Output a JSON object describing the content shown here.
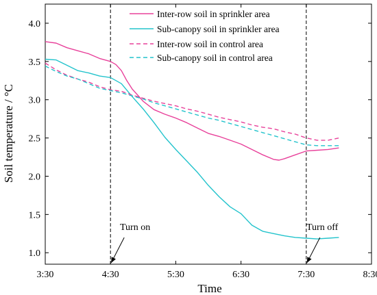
{
  "chart_data": {
    "type": "line",
    "xlabel": "Time",
    "ylabel": "Soil temperature / °C",
    "x_ticks": [
      "3:30",
      "4:30",
      "5:30",
      "6:30",
      "7:30",
      "8:30"
    ],
    "y_ticks": [
      "1.0",
      "1.5",
      "2.0",
      "2.5",
      "3.0",
      "3.5",
      "4.0"
    ],
    "xlim_minutes": [
      0,
      300
    ],
    "ylim": [
      0.85,
      4.25
    ],
    "grid": false,
    "legend_position": "top-right",
    "vlines": [
      {
        "x": "4:30",
        "label": "Turn on"
      },
      {
        "x": "7:30",
        "label": "Turn off"
      }
    ],
    "series": [
      {
        "name": "Inter-row soil in sprinkler area",
        "color": "#e8409a",
        "dash": "solid",
        "x": [
          "3:30",
          "3:40",
          "3:50",
          "4:00",
          "4:10",
          "4:20",
          "4:30",
          "4:35",
          "4:40",
          "4:45",
          "4:50",
          "4:55",
          "5:00",
          "5:10",
          "5:20",
          "5:30",
          "5:40",
          "5:50",
          "6:00",
          "6:10",
          "6:20",
          "6:30",
          "6:40",
          "6:50",
          "7:00",
          "7:05",
          "7:10",
          "7:20",
          "7:30",
          "7:40",
          "7:50",
          "8:00"
        ],
        "values": [
          3.76,
          3.74,
          3.68,
          3.64,
          3.6,
          3.54,
          3.5,
          3.46,
          3.38,
          3.25,
          3.14,
          3.06,
          2.98,
          2.87,
          2.81,
          2.76,
          2.7,
          2.63,
          2.56,
          2.52,
          2.47,
          2.42,
          2.35,
          2.28,
          2.22,
          2.21,
          2.23,
          2.28,
          2.33,
          2.34,
          2.35,
          2.37
        ]
      },
      {
        "name": "Sub-canopy soil in sprinkler area",
        "color": "#22c3cc",
        "dash": "solid",
        "x": [
          "3:30",
          "3:40",
          "3:50",
          "4:00",
          "4:10",
          "4:20",
          "4:30",
          "4:40",
          "4:50",
          "5:00",
          "5:10",
          "5:20",
          "5:30",
          "5:40",
          "5:50",
          "6:00",
          "6:10",
          "6:20",
          "6:30",
          "6:40",
          "6:50",
          "7:00",
          "7:10",
          "7:20",
          "7:30",
          "7:40",
          "7:50",
          "8:00"
        ],
        "values": [
          3.53,
          3.52,
          3.45,
          3.38,
          3.35,
          3.31,
          3.29,
          3.21,
          3.04,
          2.88,
          2.7,
          2.51,
          2.35,
          2.2,
          2.05,
          1.88,
          1.73,
          1.6,
          1.51,
          1.36,
          1.28,
          1.25,
          1.22,
          1.2,
          1.19,
          1.18,
          1.19,
          1.2
        ]
      },
      {
        "name": "Inter-row soil in control area",
        "color": "#e8409a",
        "dash": "dashed",
        "x": [
          "3:30",
          "3:40",
          "3:50",
          "4:00",
          "4:10",
          "4:20",
          "4:30",
          "4:40",
          "4:50",
          "5:00",
          "5:10",
          "5:20",
          "5:30",
          "5:40",
          "5:50",
          "6:00",
          "6:10",
          "6:20",
          "6:30",
          "6:40",
          "6:50",
          "7:00",
          "7:10",
          "7:20",
          "7:30",
          "7:40",
          "7:50",
          "8:00"
        ],
        "values": [
          3.48,
          3.39,
          3.32,
          3.27,
          3.23,
          3.17,
          3.13,
          3.11,
          3.06,
          3.02,
          2.98,
          2.95,
          2.92,
          2.88,
          2.85,
          2.81,
          2.77,
          2.74,
          2.71,
          2.67,
          2.64,
          2.62,
          2.58,
          2.55,
          2.5,
          2.47,
          2.47,
          2.5
        ]
      },
      {
        "name": "Sub-canopy soil in control area",
        "color": "#22c3cc",
        "dash": "dashed",
        "x": [
          "3:30",
          "3:40",
          "3:50",
          "4:00",
          "4:10",
          "4:20",
          "4:30",
          "4:40",
          "4:50",
          "5:00",
          "5:10",
          "5:20",
          "5:30",
          "5:40",
          "5:50",
          "6:00",
          "6:10",
          "6:20",
          "6:30",
          "6:40",
          "6:50",
          "7:00",
          "7:10",
          "7:20",
          "7:30",
          "7:40",
          "7:50",
          "8:00"
        ],
        "values": [
          3.44,
          3.37,
          3.31,
          3.27,
          3.21,
          3.15,
          3.12,
          3.09,
          3.05,
          3.01,
          2.96,
          2.92,
          2.88,
          2.84,
          2.8,
          2.76,
          2.73,
          2.69,
          2.65,
          2.61,
          2.57,
          2.53,
          2.49,
          2.45,
          2.41,
          2.4,
          2.4,
          2.4
        ]
      }
    ]
  }
}
